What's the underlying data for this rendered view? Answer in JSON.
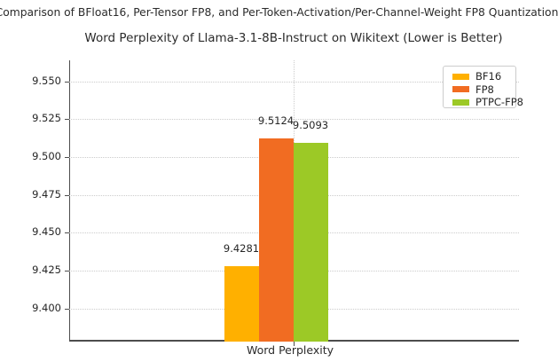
{
  "chart_data": {
    "type": "bar",
    "suptitle": "Comparison of BFloat16, Per-Tensor FP8, and Per-Token-Activation/Per-Channel-Weight FP8 Quantization",
    "title": "Word Perplexity of Llama-3.1-8B-Instruct on Wikitext (Lower is Better)",
    "categories": [
      "Word Perplexity"
    ],
    "series": [
      {
        "name": "BF16",
        "values": [
          9.4281
        ],
        "color": "#FFB000"
      },
      {
        "name": "FP8",
        "values": [
          9.5124
        ],
        "color": "#F16C22"
      },
      {
        "name": "PTPC-FP8",
        "values": [
          9.5093
        ],
        "color": "#9CC926"
      }
    ],
    "bar_labels": [
      "9.4281",
      "9.5124",
      "9.5093"
    ],
    "xlabel": "Word Perplexity",
    "ylabel": "",
    "ylim": [
      9.378,
      9.564
    ],
    "yticks": [
      9.4,
      9.425,
      9.45,
      9.475,
      9.5,
      9.525,
      9.55
    ],
    "ytick_labels": [
      "9.400",
      "9.425",
      "9.450",
      "9.475",
      "9.500",
      "9.525",
      "9.550"
    ],
    "grid": "dotted",
    "legend": {
      "position": "upper right",
      "entries": [
        "BF16",
        "FP8",
        "PTPC-FP8"
      ]
    }
  }
}
